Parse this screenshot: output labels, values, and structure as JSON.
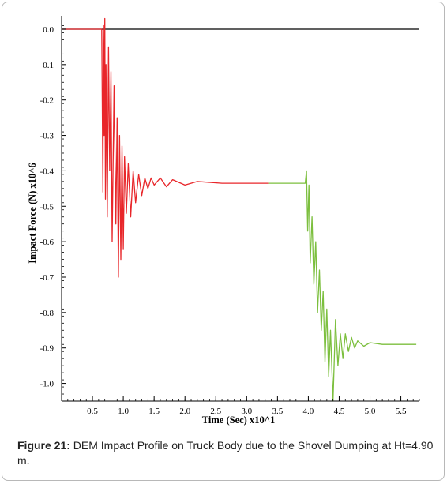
{
  "chart_data": {
    "type": "line",
    "title": "",
    "xlabel": "Time (Sec) x10^1",
    "ylabel": "Impact Force (N) x10^6",
    "xlim": [
      0,
      5.8
    ],
    "ylim": [
      -1.05,
      0.02
    ],
    "x_ticks": [
      "0.5",
      "1.0",
      "1.5",
      "2.0",
      "2.5",
      "3.0",
      "3.5",
      "4.0",
      "4.5",
      "5.0",
      "5.5"
    ],
    "y_ticks": [
      "0.0",
      "-0.1",
      "-0.2",
      "-0.3",
      "-0.4",
      "-0.5",
      "-0.6",
      "-0.7",
      "-0.8",
      "-0.9",
      "-1.0"
    ],
    "reference_line": {
      "y": 0.0,
      "color": "#000000"
    },
    "series": [
      {
        "color": "#e8262a",
        "x": [
          0.0,
          0.65,
          0.67,
          0.68,
          0.69,
          0.7,
          0.71,
          0.72,
          0.74,
          0.76,
          0.78,
          0.8,
          0.82,
          0.85,
          0.88,
          0.9,
          0.92,
          0.94,
          0.96,
          0.98,
          1.0,
          1.02,
          1.05,
          1.08,
          1.12,
          1.16,
          1.2,
          1.25,
          1.3,
          1.35,
          1.4,
          1.45,
          1.5,
          1.6,
          1.7,
          1.8,
          2.0,
          2.2,
          2.6,
          3.0,
          3.35
        ],
        "y": [
          0.0,
          0.0,
          -0.46,
          0.01,
          -0.3,
          0.03,
          -0.48,
          -0.1,
          -0.53,
          -0.05,
          -0.4,
          -0.12,
          -0.6,
          -0.16,
          -0.55,
          -0.25,
          -0.7,
          -0.3,
          -0.65,
          -0.33,
          -0.62,
          -0.36,
          -0.52,
          -0.38,
          -0.53,
          -0.4,
          -0.49,
          -0.41,
          -0.47,
          -0.42,
          -0.45,
          -0.42,
          -0.44,
          -0.42,
          -0.445,
          -0.425,
          -0.44,
          -0.43,
          -0.435,
          -0.435,
          -0.435
        ]
      },
      {
        "color": "#7cbf3e",
        "x": [
          3.35,
          3.8,
          3.95,
          3.97,
          3.99,
          4.01,
          4.03,
          4.06,
          4.09,
          4.12,
          4.15,
          4.18,
          4.21,
          4.24,
          4.27,
          4.3,
          4.33,
          4.36,
          4.4,
          4.44,
          4.48,
          4.52,
          4.56,
          4.6,
          4.65,
          4.7,
          4.75,
          4.8,
          4.9,
          5.0,
          5.2,
          5.5,
          5.75
        ],
        "y": [
          -0.435,
          -0.435,
          -0.435,
          -0.4,
          -0.57,
          -0.44,
          -0.66,
          -0.53,
          -0.72,
          -0.6,
          -0.8,
          -0.68,
          -0.85,
          -0.74,
          -0.94,
          -0.79,
          -0.98,
          -0.85,
          -1.05,
          -0.82,
          -0.95,
          -0.86,
          -0.93,
          -0.86,
          -0.91,
          -0.87,
          -0.9,
          -0.88,
          -0.895,
          -0.885,
          -0.89,
          -0.89,
          -0.89
        ]
      }
    ]
  },
  "caption": {
    "label": "Figure 21:",
    "text": " DEM Impact Profile on Truck Body due to the Shovel Dumping at Ht=4.90 m."
  }
}
